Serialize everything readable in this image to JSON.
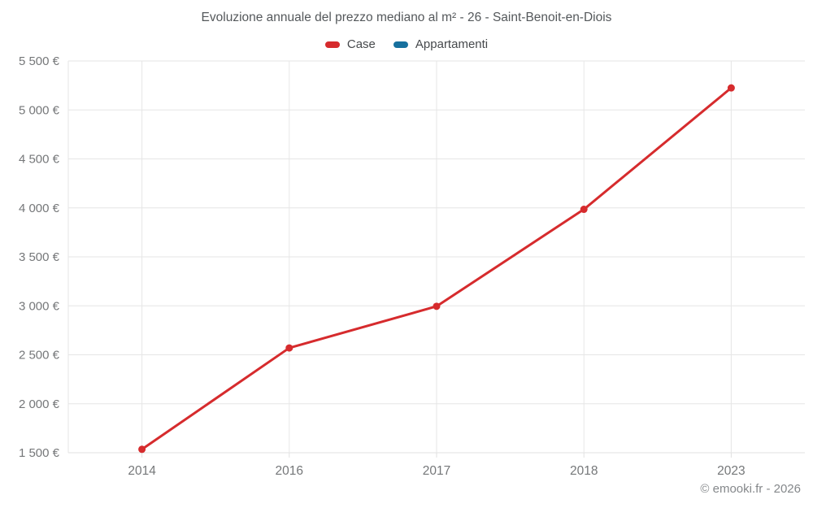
{
  "attribution": "© emooki.fr - 2026",
  "colors": {
    "grid": "#e6e6e6",
    "axis_line": "#e0e0e0",
    "tick_text": "#757779",
    "title_text": "#54585b",
    "legend_text": "#46494c",
    "footer_text": "#85888b"
  },
  "chart_data": {
    "type": "line",
    "title": "Evoluzione annuale del prezzo mediano al m² - 26 - Saint-Benoit-en-Diois",
    "categories": [
      "2014",
      "2016",
      "2017",
      "2018",
      "2023"
    ],
    "series": [
      {
        "name": "Case",
        "color": "#d62b2d",
        "values": [
          1535,
          2570,
          2995,
          3985,
          5225
        ]
      },
      {
        "name": "Appartamenti",
        "color": "#17709e",
        "values": []
      }
    ],
    "ylim": [
      1500,
      5500
    ],
    "ytick_step": 500,
    "ytick_labels": [
      "1 500 €",
      "2 000 €",
      "2 500 €",
      "3 000 €",
      "3 500 €",
      "4 000 €",
      "4 500 €",
      "5 000 €",
      "5 500 €"
    ],
    "xlabel": "",
    "ylabel": "",
    "grid": true,
    "legend_position": "top"
  }
}
